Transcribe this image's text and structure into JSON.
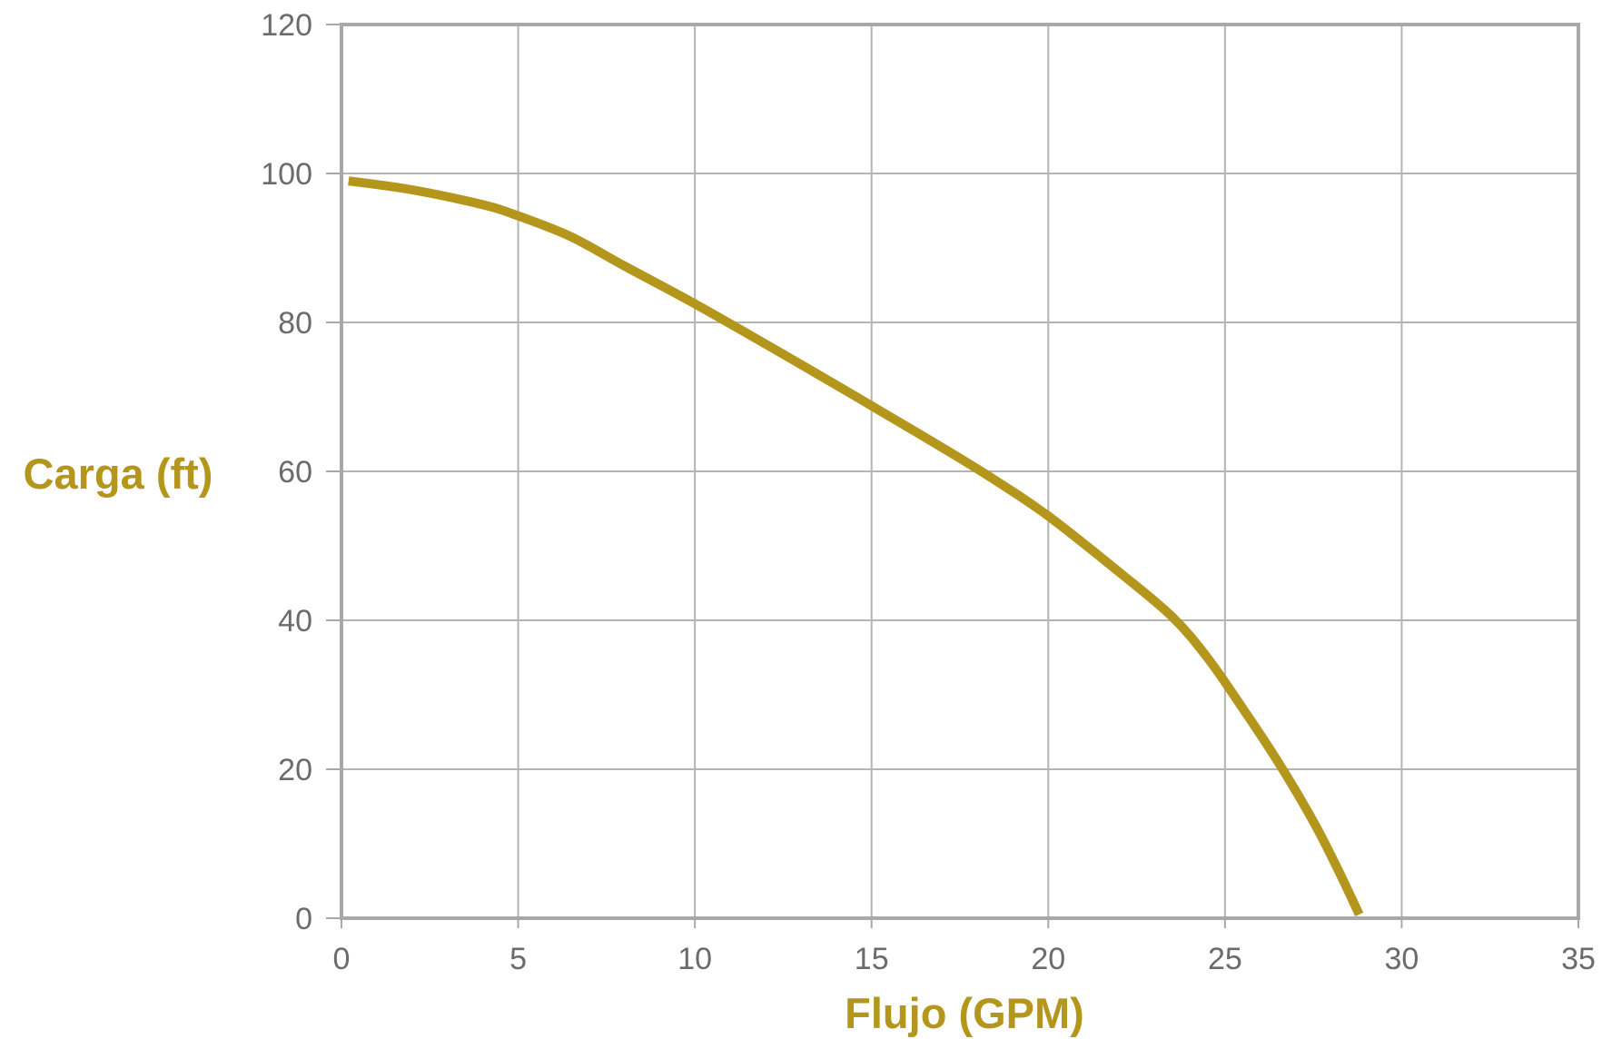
{
  "chart_data": {
    "type": "line",
    "title": "",
    "xlabel": "Flujo (GPM)",
    "ylabel": "Carga (ft)",
    "xlim": [
      0,
      35
    ],
    "ylim": [
      0,
      120
    ],
    "xticks": [
      0,
      5,
      10,
      15,
      20,
      25,
      30,
      35
    ],
    "yticks": [
      0,
      20,
      40,
      60,
      80,
      100,
      120
    ],
    "xtick_labels": [
      "0",
      "5",
      "10",
      "15",
      "20",
      "25",
      "30",
      "35"
    ],
    "ytick_labels": [
      "0",
      "20",
      "40",
      "60",
      "80",
      "100",
      "120"
    ],
    "grid": true,
    "legend": "none",
    "series": [
      {
        "x": [
          0.2,
          2,
          4,
          5,
          6.5,
          8,
          10,
          12,
          14,
          15,
          17,
          18.5,
          20,
          22,
          23.5,
          24.5,
          25.5,
          26.5,
          27.5,
          28.2,
          28.8
        ],
        "y": [
          99,
          97.8,
          95.8,
          94.3,
          91.5,
          87.6,
          82.5,
          77.1,
          71.6,
          68.8,
          63.2,
          58.8,
          54,
          46.5,
          40.5,
          35,
          28.2,
          21,
          13,
          6.5,
          0.5
        ]
      }
    ],
    "colors": {
      "line": "#b5961c",
      "axis_title": "#b5961c",
      "grid": "#b4b4b4",
      "frame": "#a8a8a8",
      "tick_label": "#6b6b6b"
    }
  }
}
